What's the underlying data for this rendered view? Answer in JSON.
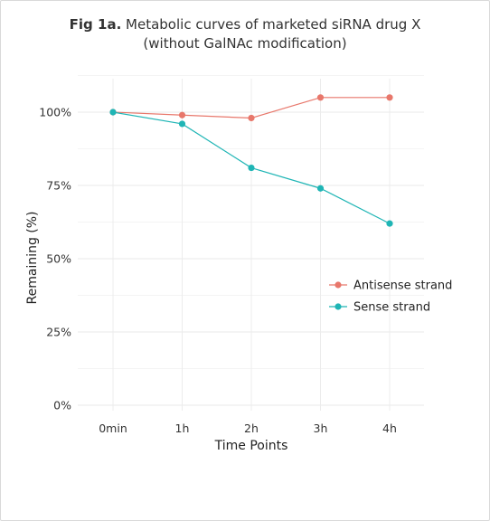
{
  "title": {
    "prefix": "Fig 1a.",
    "line1": "Metabolic curves of marketed siRNA drug X",
    "line2": "(without GalNAc modification)"
  },
  "chart_data": {
    "type": "line",
    "title": "Fig 1a. Metabolic curves of marketed siRNA drug X (without GalNAc modification)",
    "xlabel": "Time Points",
    "ylabel": "Remaining (%)",
    "categories": [
      "0min",
      "1h",
      "2h",
      "3h",
      "4h"
    ],
    "ylim": [
      0,
      110
    ],
    "yticks": [
      0,
      25,
      50,
      75,
      100
    ],
    "ytick_labels": [
      "0%",
      "25%",
      "50%",
      "75%",
      "100%"
    ],
    "grid": true,
    "legend_position": "right",
    "series": [
      {
        "name": "Antisense strand",
        "color": "#E8776B",
        "values": [
          100,
          99,
          98,
          105,
          105
        ]
      },
      {
        "name": "Sense strand",
        "color": "#1FB5B5",
        "values": [
          100,
          96,
          81,
          74,
          62
        ]
      }
    ]
  }
}
